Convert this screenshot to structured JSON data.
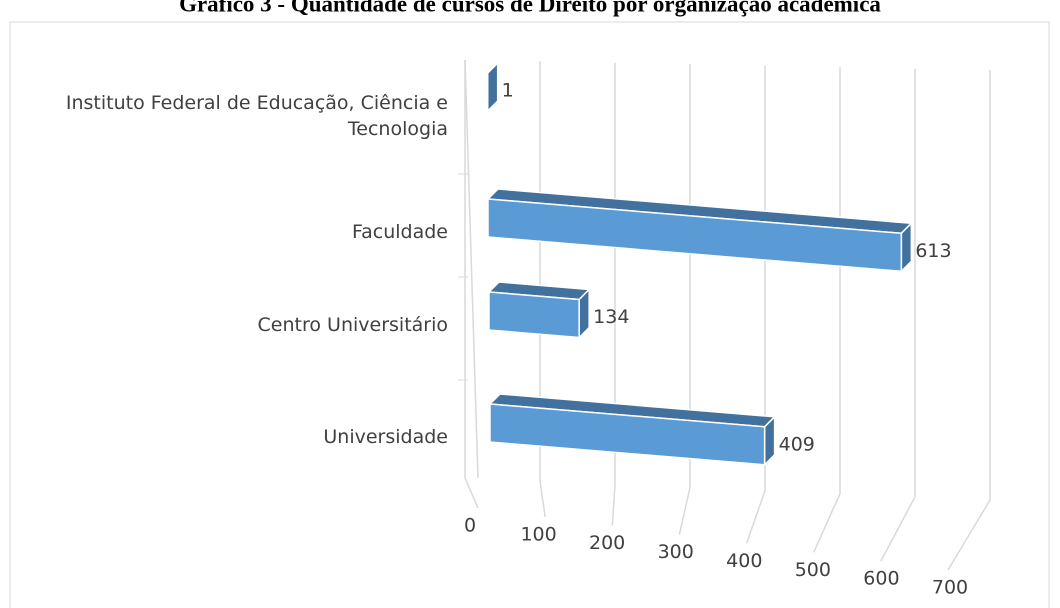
{
  "chart_data": {
    "type": "bar",
    "orientation": "horizontal",
    "title": "Gráfico 3 - Quantidade de cursos de Direito por organização acadêmica",
    "categories": [
      "Universidade",
      "Centro Universitário",
      "Faculdade",
      "Instituto Federal de Educação, Ciência e Tecnologia"
    ],
    "values": [
      409,
      134,
      613,
      1
    ],
    "color": "#5b9bd5",
    "xlim": [
      0,
      700
    ],
    "xticks": [
      0,
      100,
      200,
      300,
      400,
      500,
      600,
      700
    ],
    "grid": true
  }
}
